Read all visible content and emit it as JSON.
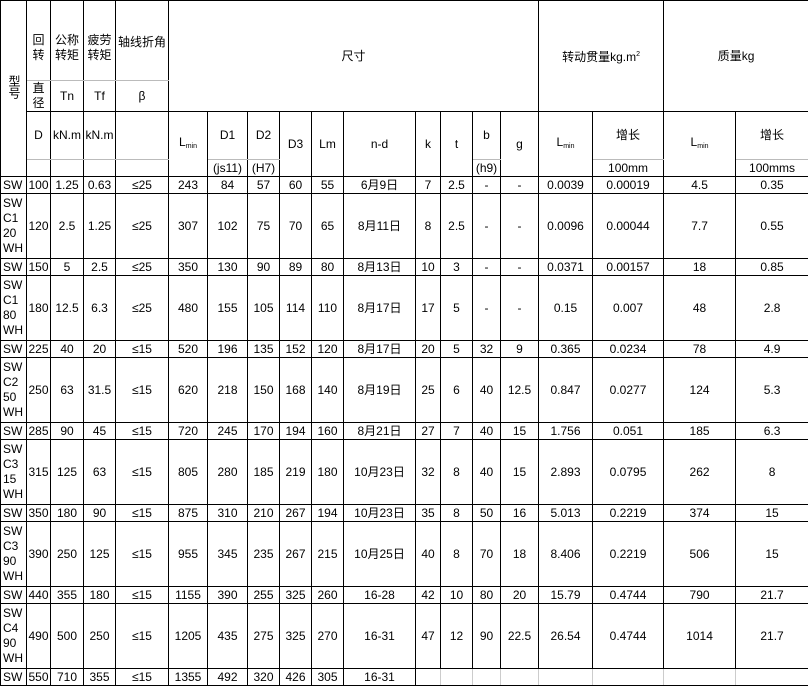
{
  "header": {
    "model": "型号",
    "rot1": "回转",
    "rot2": "直径",
    "rot3": "D",
    "tn1": "公称转矩",
    "tn2": "Tn",
    "tn3": "kN.m",
    "tf1": "疲劳转矩",
    "tf2": "Tf",
    "tf3": "kN.m",
    "beta1": "轴线折角",
    "beta2": "β",
    "dims": "尺寸",
    "lmin_l": "L",
    "lmin_s": "min",
    "d1": "D1",
    "d1_tol": "(js11)",
    "d2": "D2",
    "d2_tol": "(H7)",
    "d3": "D3",
    "lm": "Lm",
    "nd": "n-d",
    "k": "k",
    "t": "t",
    "b": "b",
    "b_tol": "(h9)",
    "g": "g",
    "inertia": "转动贯量kg.m",
    "inertia_sup": "2",
    "inertia_inc": "增长",
    "inertia_unit": "100mm",
    "mass": "质量kg",
    "mass_inc": "增长",
    "mass_unit": "100mms"
  },
  "rows": [
    [
      "SW",
      "100",
      "1.25",
      "0.63",
      "≤25",
      "243",
      "84",
      "57",
      "60",
      "55",
      "6月9日",
      "7",
      "2.5",
      "-",
      "-",
      "0.0039",
      "0.00019",
      "4.5",
      "0.35"
    ],
    [
      "SW\nC1\n20\nWH",
      "120",
      "2.5",
      "1.25",
      "≤25",
      "307",
      "102",
      "75",
      "70",
      "65",
      "8月11日",
      "8",
      "2.5",
      "-",
      "-",
      "0.0096",
      "0.00044",
      "7.7",
      "0.55"
    ],
    [
      "SW",
      "150",
      "5",
      "2.5",
      "≤25",
      "350",
      "130",
      "90",
      "89",
      "80",
      "8月13日",
      "10",
      "3",
      "-",
      "-",
      "0.0371",
      "0.00157",
      "18",
      "0.85"
    ],
    [
      "SW\nC1\n80\nWH",
      "180",
      "12.5",
      "6.3",
      "≤25",
      "480",
      "155",
      "105",
      "114",
      "110",
      "8月17日",
      "17",
      "5",
      "-",
      "-",
      "0.15",
      "0.007",
      "48",
      "2.8"
    ],
    [
      "SW",
      "225",
      "40",
      "20",
      "≤15",
      "520",
      "196",
      "135",
      "152",
      "120",
      "8月17日",
      "20",
      "5",
      "32",
      "9",
      "0.365",
      "0.0234",
      "78",
      "4.9"
    ],
    [
      "SW\nC2\n50\nWH",
      "250",
      "63",
      "31.5",
      "≤15",
      "620",
      "218",
      "150",
      "168",
      "140",
      "8月19日",
      "25",
      "6",
      "40",
      "12.5",
      "0.847",
      "0.0277",
      "124",
      "5.3"
    ],
    [
      "SW",
      "285",
      "90",
      "45",
      "≤15",
      "720",
      "245",
      "170",
      "194",
      "160",
      "8月21日",
      "27",
      "7",
      "40",
      "15",
      "1.756",
      "0.051",
      "185",
      "6.3"
    ],
    [
      "SW\nC3\n15\nWH",
      "315",
      "125",
      "63",
      "≤15",
      "805",
      "280",
      "185",
      "219",
      "180",
      "10月23日",
      "32",
      "8",
      "40",
      "15",
      "2.893",
      "0.0795",
      "262",
      "8"
    ],
    [
      "SW",
      "350",
      "180",
      "90",
      "≤15",
      "875",
      "310",
      "210",
      "267",
      "194",
      "10月23日",
      "35",
      "8",
      "50",
      "16",
      "5.013",
      "0.2219",
      "374",
      "15"
    ],
    [
      "SW\nC3\n90\nWH",
      "390",
      "250",
      "125",
      "≤15",
      "955",
      "345",
      "235",
      "267",
      "215",
      "10月25日",
      "40",
      "8",
      "70",
      "18",
      "8.406",
      "0.2219",
      "506",
      "15"
    ],
    [
      "SW",
      "440",
      "355",
      "180",
      "≤15",
      "1155",
      "390",
      "255",
      "325",
      "260",
      "16-28",
      "42",
      "10",
      "80",
      "20",
      "15.79",
      "0.4744",
      "790",
      "21.7"
    ],
    [
      "SW\nC4\n90\nWH",
      "490",
      "500",
      "250",
      "≤15",
      "1205",
      "435",
      "275",
      "325",
      "270",
      "16-31",
      "47",
      "12",
      "90",
      "22.5",
      "26.54",
      "0.4744",
      "1014",
      "21.7"
    ],
    [
      "SW",
      "550",
      "710",
      "355",
      "≤15",
      "1355",
      "492",
      "320",
      "426",
      "305",
      "16-31",
      "",
      "",
      "",
      "",
      "",
      "",
      "",
      ""
    ]
  ]
}
